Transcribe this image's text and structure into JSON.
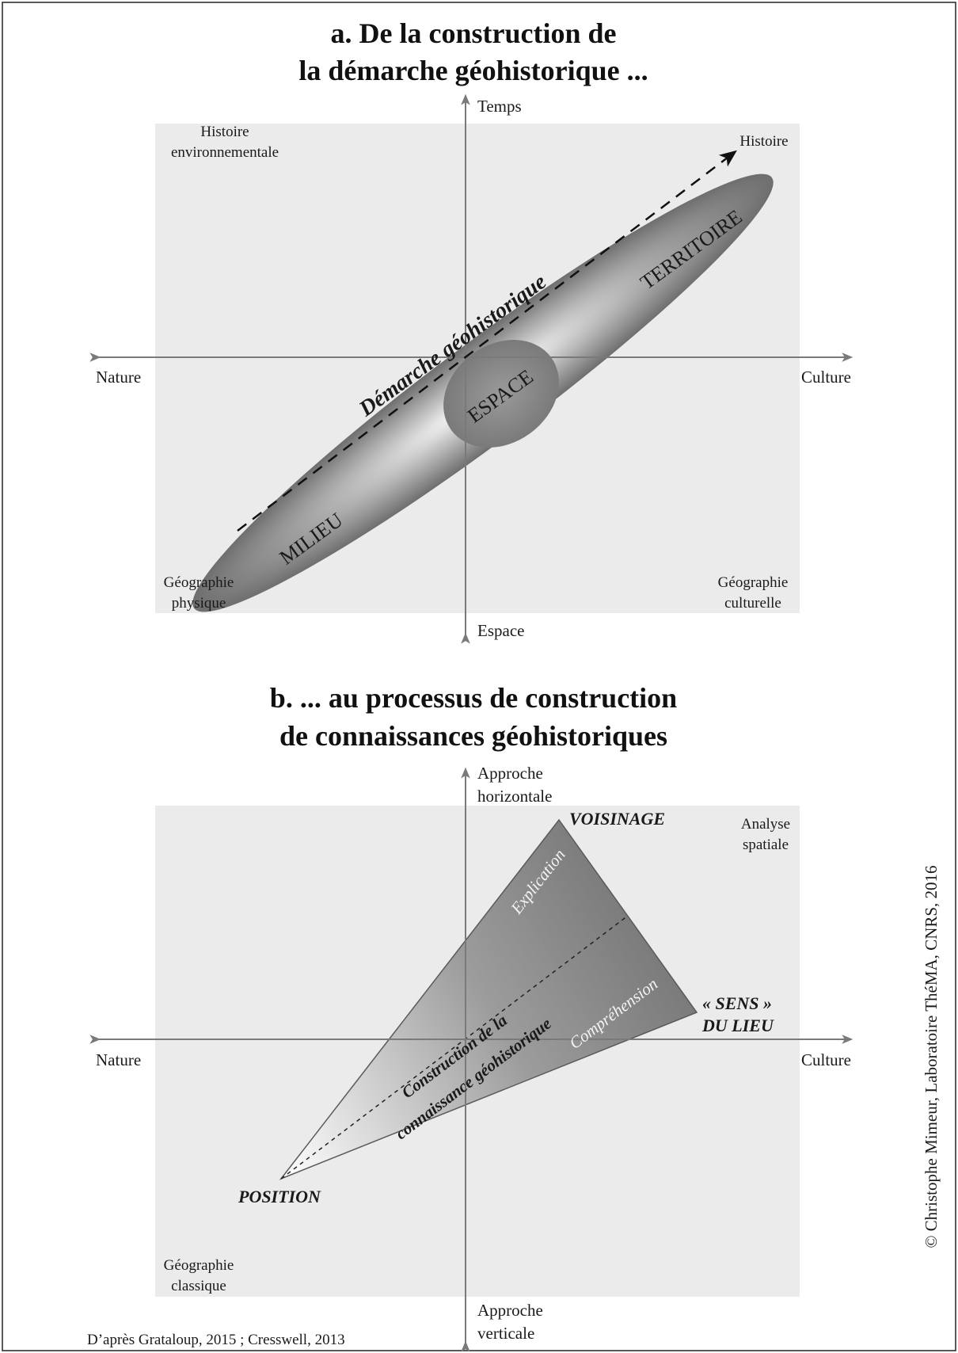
{
  "panel_a": {
    "title_line1": "a. De la construction de",
    "title_line2": "la démarche géohistorique ...",
    "axis_top": "Temps",
    "axis_bottom": "Espace",
    "axis_left": "Nature",
    "axis_right": "Culture",
    "corner_tl_line1": "Histoire",
    "corner_tl_line2": "environnementale",
    "corner_tr": "Histoire",
    "corner_bl_line1": "Géographie",
    "corner_bl_line2": "physique",
    "corner_br_line1": "Géographie",
    "corner_br_line2": "culturelle",
    "ellipse_milieu": "MILIEU",
    "ellipse_territoire": "TERRITOIRE",
    "ellipse_espace": "ESPACE",
    "arrow_label": "Démarche géohistorique"
  },
  "panel_b": {
    "title_line1": "b. ... au processus de construction",
    "title_line2": "de connaissances géohistoriques",
    "axis_top_line1": "Approche",
    "axis_top_line2": "horizontale",
    "axis_bottom_line1": "Approche",
    "axis_bottom_line2": "verticale",
    "axis_left": "Nature",
    "axis_right": "Culture",
    "corner_tr_line1": "Analyse",
    "corner_tr_line2": "spatiale",
    "corner_bl_line1": "Géographie",
    "corner_bl_line2": "classique",
    "vertex_voisinage": "VOISINAGE",
    "vertex_sens_line1": "« SENS »",
    "vertex_sens_line2": "DU LIEU",
    "vertex_position": "POSITION",
    "edge_explication": "Explication",
    "edge_comprehension": "Compréhension",
    "center_line1": "Construction de la",
    "center_line2": "connaissance géohistorique"
  },
  "source": "D’après Grataloup, 2015 ; Cresswell, 2013",
  "copyright": "© Christophe Mimeur, Laboratoire ThéMA, CNRS, 2016"
}
